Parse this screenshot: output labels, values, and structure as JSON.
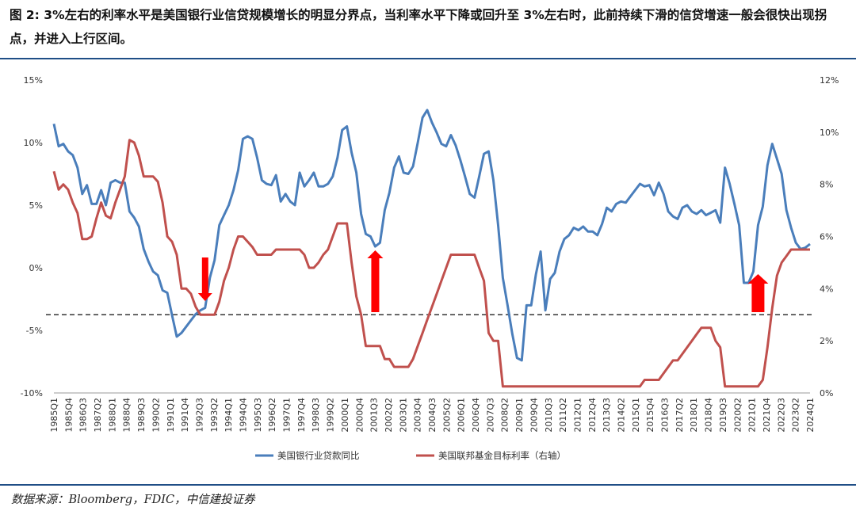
{
  "title": "图 2: 3%左右的利率水平是美国银行业信贷规模增长的明显分界点，当利率水平下降或回升至 3%左右时，此前持续下滑的信贷增速一般会很快出现拐点，并进入上行区间。",
  "source": "数据来源：Bloomberg，FDIC，中信建投证券",
  "colors": {
    "series1": "#4a7ebb",
    "series2": "#c0504d",
    "arrow": "#ff0000",
    "rule": "#1f4e86"
  },
  "chart_data": {
    "type": "line",
    "left_axis": {
      "min": -10,
      "max": 15,
      "ticks": [
        "15%",
        "10%",
        "5%",
        "0%",
        "-5%",
        "-10%"
      ]
    },
    "right_axis": {
      "min": 0,
      "max": 12,
      "ticks": [
        "12%",
        "10%",
        "8%",
        "6%",
        "4%",
        "2%",
        "0%"
      ]
    },
    "x_tick_labels": [
      "1985Q1",
      "1985Q4",
      "1986Q3",
      "1987Q2",
      "1988Q1",
      "1988Q4",
      "1989Q3",
      "1990Q2",
      "1991Q1",
      "1991Q4",
      "1992Q3",
      "1993Q2",
      "1994Q1",
      "1994Q4",
      "1995Q3",
      "1996Q2",
      "1997Q1",
      "1997Q4",
      "1998Q3",
      "1999Q2",
      "2000Q1",
      "2000Q4",
      "2001Q3",
      "2002Q2",
      "2003Q1",
      "2003Q4",
      "2004Q3",
      "2005Q2",
      "2006Q1",
      "2006Q4",
      "2007Q3",
      "2008Q2",
      "2009Q1",
      "2009Q4",
      "2010Q3",
      "2011Q2",
      "2012Q1",
      "2012Q4",
      "2013Q3",
      "2014Q2",
      "2015Q1",
      "2015Q4",
      "2016Q3",
      "2017Q2",
      "2018Q1",
      "2018Q4",
      "2019Q3",
      "2020Q2",
      "2021Q1",
      "2021Q4",
      "2022Q3",
      "2023Q2",
      "2024Q1"
    ],
    "reference_line": {
      "axis": "right",
      "value": 3
    },
    "series": [
      {
        "name": "美国银行业贷款同比",
        "axis": "left",
        "values": [
          11.5,
          9.7,
          9.9,
          9.3,
          9.0,
          8.0,
          5.9,
          6.6,
          5.1,
          5.1,
          6.2,
          5.0,
          6.8,
          7.0,
          6.8,
          6.8,
          4.5,
          4.0,
          3.3,
          1.5,
          0.5,
          -0.3,
          -0.6,
          -1.8,
          -2.0,
          -3.8,
          -5.5,
          -5.2,
          -4.7,
          -4.2,
          -3.7,
          -3.4,
          -3.2,
          -0.8,
          0.6,
          3.4,
          4.2,
          5.0,
          6.2,
          7.8,
          10.3,
          10.5,
          10.3,
          8.8,
          7.0,
          6.7,
          6.6,
          7.4,
          5.3,
          5.9,
          5.3,
          5.0,
          7.6,
          6.5,
          7.0,
          7.6,
          6.5,
          6.5,
          6.7,
          7.3,
          8.8,
          11.0,
          11.3,
          9.2,
          7.6,
          4.3,
          2.7,
          2.5,
          1.7,
          2.0,
          4.6,
          6.0,
          8.0,
          8.9,
          7.6,
          7.5,
          8.1,
          10.0,
          12.0,
          12.6,
          11.6,
          10.8,
          9.9,
          9.7,
          10.6,
          9.8,
          8.6,
          7.3,
          5.9,
          5.6,
          7.3,
          9.1,
          9.3,
          7.0,
          3.4,
          -0.8,
          -3.0,
          -5.3,
          -7.2,
          -7.4,
          -3.0,
          -3.0,
          -0.5,
          1.3,
          -3.4,
          -0.9,
          -0.4,
          1.3,
          2.3,
          2.6,
          3.2,
          3.0,
          3.3,
          2.9,
          2.9,
          2.6,
          3.5,
          4.8,
          4.5,
          5.1,
          5.3,
          5.2,
          5.7,
          6.2,
          6.7,
          6.5,
          6.6,
          5.8,
          6.8,
          5.9,
          4.5,
          4.1,
          3.9,
          4.8,
          5.0,
          4.5,
          4.3,
          4.6,
          4.2,
          4.4,
          4.6,
          3.6,
          8.0,
          6.7,
          5.1,
          3.4,
          -1.2,
          -1.2,
          -0.3,
          3.4,
          4.9,
          8.2,
          9.9,
          8.7,
          7.5,
          4.6,
          3.2,
          2.0,
          1.5,
          1.6,
          1.9
        ]
      },
      {
        "name": "美国联邦基金目标利率（右轴）",
        "axis": "right",
        "values": [
          8.5,
          7.8,
          8.0,
          7.8,
          7.3,
          6.9,
          5.9,
          5.9,
          6.0,
          6.7,
          7.3,
          6.8,
          6.7,
          7.3,
          7.8,
          8.3,
          9.7,
          9.6,
          9.1,
          8.3,
          8.3,
          8.3,
          8.1,
          7.3,
          6.0,
          5.8,
          5.3,
          4.0,
          4.0,
          3.8,
          3.3,
          3.0,
          3.0,
          3.0,
          3.0,
          3.5,
          4.3,
          4.8,
          5.5,
          6.0,
          6.0,
          5.8,
          5.6,
          5.3,
          5.3,
          5.3,
          5.3,
          5.5,
          5.5,
          5.5,
          5.5,
          5.5,
          5.5,
          5.3,
          4.8,
          4.8,
          5.0,
          5.3,
          5.5,
          6.0,
          6.5,
          6.5,
          6.5,
          5.0,
          3.7,
          3.0,
          1.8,
          1.8,
          1.8,
          1.8,
          1.3,
          1.3,
          1.0,
          1.0,
          1.0,
          1.0,
          1.3,
          1.8,
          2.3,
          2.8,
          3.3,
          3.8,
          4.3,
          4.8,
          5.3,
          5.3,
          5.3,
          5.3,
          5.3,
          5.3,
          4.8,
          4.3,
          2.3,
          2.0,
          2.0,
          0.25,
          0.25,
          0.25,
          0.25,
          0.25,
          0.25,
          0.25,
          0.25,
          0.25,
          0.25,
          0.25,
          0.25,
          0.25,
          0.25,
          0.25,
          0.25,
          0.25,
          0.25,
          0.25,
          0.25,
          0.25,
          0.25,
          0.25,
          0.25,
          0.25,
          0.25,
          0.25,
          0.25,
          0.25,
          0.25,
          0.5,
          0.5,
          0.5,
          0.5,
          0.75,
          1.0,
          1.25,
          1.25,
          1.5,
          1.75,
          2.0,
          2.25,
          2.5,
          2.5,
          2.5,
          2.0,
          1.75,
          0.25,
          0.25,
          0.25,
          0.25,
          0.25,
          0.25,
          0.25,
          0.25,
          0.5,
          1.75,
          3.25,
          4.5,
          5.0,
          5.25,
          5.5,
          5.5,
          5.5,
          5.5,
          5.5
        ]
      }
    ],
    "annotations": [
      {
        "type": "arrow",
        "direction": "down",
        "at": "1993Q1"
      },
      {
        "type": "arrow",
        "direction": "up",
        "at": "2002Q1"
      },
      {
        "type": "arrow",
        "direction": "up",
        "at": "2022Q2"
      }
    ],
    "grid": false,
    "legend_position": "bottom"
  }
}
